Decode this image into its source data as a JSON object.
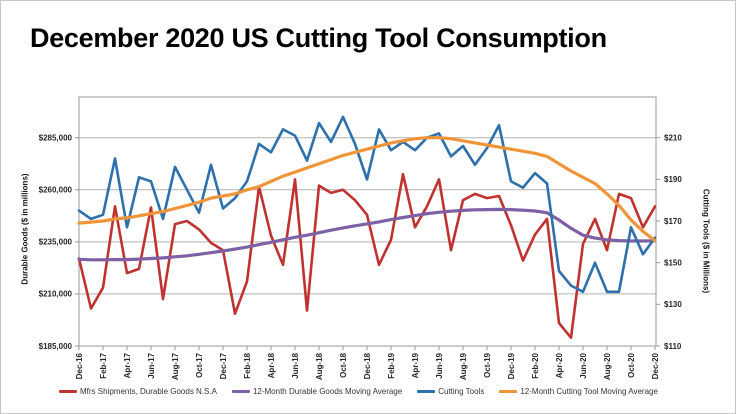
{
  "title": "December 2020 US Cutting Tool Consumption",
  "axes": {
    "left": {
      "title": "Durable Goods ($ in millions)",
      "ticks": [
        {
          "label": "$185,000",
          "value": 185000
        },
        {
          "label": "$210,000",
          "value": 210000
        },
        {
          "label": "$235,000",
          "value": 235000
        },
        {
          "label": "$260,000",
          "value": 260000
        },
        {
          "label": "$285,000",
          "value": 285000
        }
      ],
      "range": [
        185000,
        305000
      ]
    },
    "right": {
      "title": "Cutting Tools ($ in Millions)",
      "ticks": [
        {
          "label": "$110",
          "value": 110
        },
        {
          "label": "$130",
          "value": 130
        },
        {
          "label": "$150",
          "value": 150
        },
        {
          "label": "$170",
          "value": 170
        },
        {
          "label": "$190",
          "value": 190
        },
        {
          "label": "$210",
          "value": 210
        }
      ],
      "range": [
        110,
        230
      ]
    },
    "x": {
      "label_every_n_months": 2
    }
  },
  "legend": [
    {
      "label": "Mfrs Shipments, Durable Goods N.S.A",
      "color": "#c0322f"
    },
    {
      "label": "12-Month Durable Goods Moving Average",
      "color": "#7e60a5"
    },
    {
      "label": "Cutting Tools",
      "color": "#2e6fad"
    },
    {
      "label": "12-Month Cutting Tool Moving Average",
      "color": "#f0943a"
    }
  ],
  "colors": {
    "grid": "#b3b3b3",
    "plot_border": "#9a9a9a",
    "tick_text": "#262626",
    "background": "#ffffff"
  },
  "chart_data": {
    "type": "line",
    "title": "December 2020 US Cutting Tool Consumption",
    "legend_position": "bottom",
    "grid": "horizontal-only",
    "x": [
      "Dec-16",
      "Jan-17",
      "Feb-17",
      "Mar-17",
      "Apr-17",
      "May-17",
      "Jun-17",
      "Jul-17",
      "Aug-17",
      "Sep-17",
      "Oct-17",
      "Nov-17",
      "Dec-17",
      "Jan-18",
      "Feb-18",
      "Mar-18",
      "Apr-18",
      "May-18",
      "Jun-18",
      "Jul-18",
      "Aug-18",
      "Sep-18",
      "Oct-18",
      "Nov-18",
      "Dec-18",
      "Jan-19",
      "Feb-19",
      "Mar-19",
      "Apr-19",
      "May-19",
      "Jun-19",
      "Jul-19",
      "Aug-19",
      "Sep-19",
      "Oct-19",
      "Nov-19",
      "Dec-19",
      "Jan-20",
      "Feb-20",
      "Mar-20",
      "Apr-20",
      "May-20",
      "Jun-20",
      "Jul-20",
      "Aug-20",
      "Sep-20",
      "Oct-20",
      "Nov-20",
      "Dec-20"
    ],
    "series": [
      {
        "name": "Mfrs Shipments, Durable Goods N.S.A",
        "axis": "left",
        "color": "#c0322f",
        "values": [
          227000,
          203000,
          213000,
          252000,
          220000,
          222000,
          251500,
          207500,
          243500,
          245000,
          241000,
          234500,
          231000,
          200500,
          216000,
          261500,
          238000,
          224000,
          265000,
          202000,
          262000,
          258500,
          260000,
          255000,
          248000,
          224000,
          236000,
          267500,
          242000,
          252000,
          265000,
          231000,
          255000,
          258000,
          256000,
          257000,
          243000,
          226000,
          238500,
          246000,
          196000,
          189000,
          234000,
          246000,
          231000,
          258000,
          256000,
          242000,
          252000
        ]
      },
      {
        "name": "12-Month Durable Goods Moving Average",
        "axis": "left",
        "color": "#7e60a5",
        "values": [
          226600,
          226400,
          226400,
          226500,
          226500,
          226700,
          227000,
          227300,
          227800,
          228300,
          229000,
          229800,
          230600,
          231500,
          232500,
          233700,
          234800,
          236000,
          237200,
          238200,
          239400,
          240600,
          241700,
          242700,
          243600,
          244600,
          245700,
          246700,
          247600,
          248500,
          249200,
          249700,
          250100,
          250400,
          250500,
          250600,
          250500,
          250200,
          249800,
          249000,
          245500,
          241500,
          238200,
          236800,
          236000,
          235600,
          235400,
          235400,
          235500
        ]
      },
      {
        "name": "Cutting Tools",
        "axis": "right",
        "color": "#2e6fad",
        "values": [
          175,
          171,
          173,
          200,
          167,
          191,
          189,
          171,
          196,
          185,
          174,
          197,
          176,
          181,
          189,
          207,
          203,
          214,
          211,
          199,
          217,
          208,
          220,
          207,
          190,
          214,
          204,
          208,
          204,
          210,
          212,
          201,
          206,
          197,
          205,
          216,
          189,
          186,
          193,
          188,
          146,
          139,
          136,
          150,
          136,
          136,
          167,
          154,
          162
        ]
      },
      {
        "name": "12-Month Cutting Tool Moving Average",
        "axis": "right",
        "color": "#f0943a",
        "values": [
          169,
          169.5,
          170,
          171,
          171.5,
          172.5,
          173.5,
          174.5,
          176,
          177.5,
          179,
          181,
          182,
          183,
          185,
          186.5,
          189,
          191.5,
          193.5,
          195.5,
          197.5,
          199.5,
          201.5,
          203,
          204.5,
          206,
          207.5,
          208.5,
          209.5,
          210,
          210,
          209.5,
          208.5,
          207.5,
          206.5,
          205.5,
          204.5,
          203.5,
          202.5,
          201,
          197.5,
          194,
          191,
          188,
          183,
          177.5,
          170.5,
          165,
          160.5
        ]
      }
    ]
  }
}
